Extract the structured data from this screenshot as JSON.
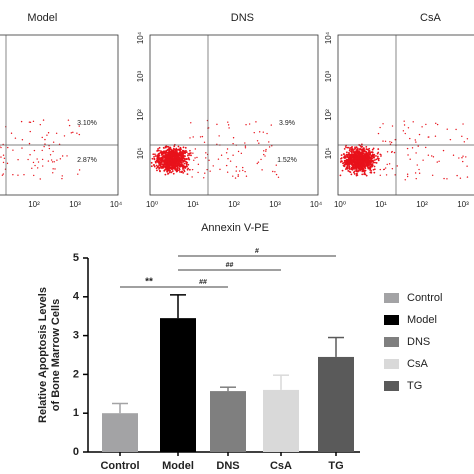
{
  "flow_cytometry": {
    "axis_label": "Annexin V-PE",
    "ticks": [
      "10⁰",
      "10¹",
      "10²",
      "10³",
      "10⁴"
    ],
    "panels": [
      {
        "title": "Model",
        "upper_right": "3.10%",
        "lower_right": "2.87%"
      },
      {
        "title": "DNS",
        "upper_right": "3.9%",
        "lower_right": "1.52%"
      },
      {
        "title": "CsA"
      }
    ]
  },
  "chart_data": {
    "type": "bar",
    "ylabel": [
      "Relative Apoptosis Levels",
      "of Bone Marrow Cells"
    ],
    "categories": [
      "Control",
      "Model",
      "DNS",
      "CsA",
      "TG"
    ],
    "values": [
      1.0,
      3.45,
      1.57,
      1.6,
      2.45
    ],
    "errors": [
      0.25,
      0.6,
      0.1,
      0.38,
      0.5
    ],
    "colors": [
      "#a3a3a5",
      "#000000",
      "#7f7f7f",
      "#d9d9d9",
      "#5a5a5a"
    ],
    "ylim": [
      0,
      5
    ],
    "yticks": [
      0,
      1,
      2,
      3,
      4,
      5
    ],
    "legend": "right",
    "annotations": [
      {
        "text": "**",
        "from": "Control",
        "to": "Model"
      },
      {
        "text": "##",
        "from": "Model",
        "to": "DNS"
      },
      {
        "text": "##",
        "from": "Model",
        "to": "CsA"
      },
      {
        "text": "#",
        "from": "Model",
        "to": "TG"
      }
    ]
  }
}
